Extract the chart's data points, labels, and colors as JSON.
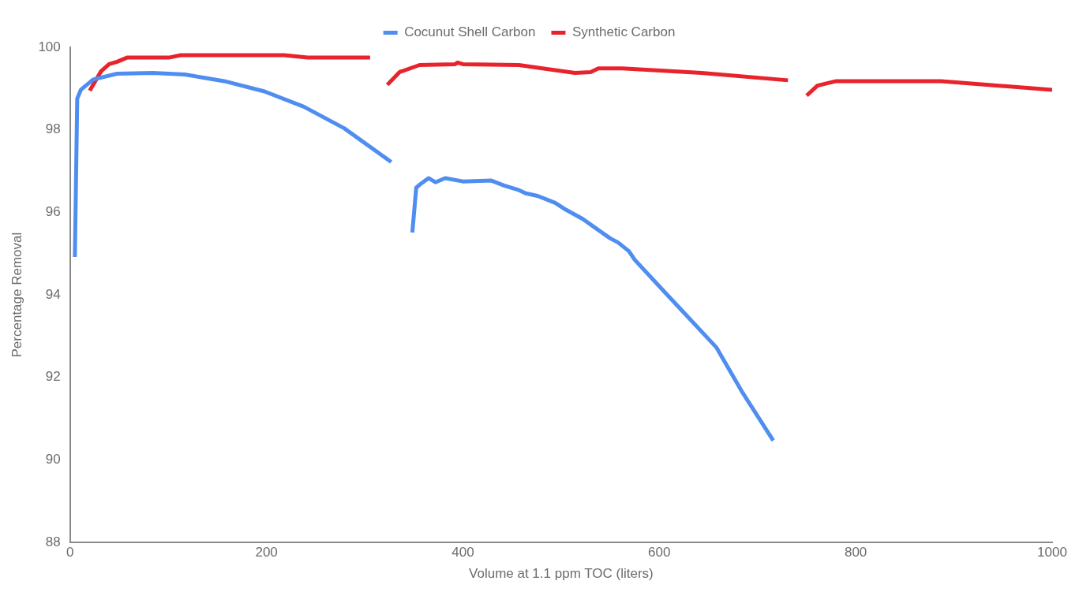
{
  "chart_data": {
    "type": "line",
    "xlabel": "Volume at 1.1 ppm TOC (liters)",
    "ylabel": "Percentage Removal",
    "xlim": [
      0,
      1000
    ],
    "xticks": [
      0,
      200,
      400,
      600,
      800,
      1000
    ],
    "ylim": [
      88,
      100
    ],
    "yticks": [
      88,
      90,
      92,
      94,
      96,
      98,
      100
    ],
    "grid": false,
    "legend": "top",
    "marker": "none",
    "line_style": "solid",
    "series": [
      {
        "name": "Cocunut Shell Carbon",
        "color": "#4f8ef0",
        "x": [
          4.9,
          7.3,
          11,
          23.5,
          47.8,
          84,
          117,
          157,
          198,
          238,
          279,
          327,
          338,
          348.5,
          352.5,
          356,
          365,
          372,
          382,
          400,
          429,
          442,
          457,
          464,
          476,
          494,
          503,
          522,
          538,
          550,
          558,
          569,
          575,
          603,
          627,
          658,
          684,
          716
        ],
        "values": [
          94.92,
          98.76,
          98.97,
          99.22,
          99.36,
          99.38,
          99.34,
          99.18,
          98.93,
          98.56,
          98.04,
          97.22,
          null,
          95.51,
          96.6,
          96.67,
          96.83,
          96.73,
          96.83,
          96.75,
          96.77,
          96.65,
          96.54,
          96.46,
          96.4,
          96.23,
          96.09,
          95.84,
          95.57,
          95.37,
          95.27,
          95.06,
          94.85,
          94.13,
          93.52,
          92.73,
          91.66,
          90.47
        ]
      },
      {
        "name": "Synthetic Carbon",
        "color": "#e8232b",
        "x": [
          20,
          31.6,
          39.7,
          47.8,
          58,
          100.5,
          112.6,
          157,
          218,
          242,
          305.5,
          314,
          323,
          335.5,
          355.8,
          392,
          394.6,
          400,
          457,
          481,
          514,
          530,
          538,
          562,
          643,
          731,
          740,
          750,
          761,
          780,
          887,
          1000
        ],
        "values": [
          98.95,
          99.42,
          99.59,
          99.65,
          99.75,
          99.75,
          99.81,
          99.81,
          99.81,
          99.75,
          99.75,
          null,
          99.09,
          99.4,
          99.57,
          99.59,
          99.63,
          99.59,
          99.57,
          99.49,
          99.38,
          99.4,
          99.49,
          99.49,
          99.38,
          99.2,
          null,
          98.83,
          99.07,
          99.18,
          99.18,
          98.97
        ]
      }
    ]
  }
}
